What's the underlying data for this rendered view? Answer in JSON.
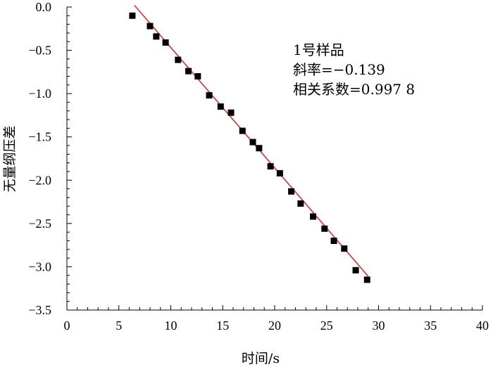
{
  "chart_data": {
    "type": "scatter",
    "xlabel": "时间/s",
    "ylabel": "无量纲压差",
    "xlim": [
      0,
      40
    ],
    "ylim": [
      -3.5,
      0.0
    ],
    "xticks": [
      "0",
      "5",
      "10",
      "15",
      "20",
      "25",
      "30",
      "35",
      "40"
    ],
    "yticks": [
      "0.0",
      "−0.5",
      "−1.0",
      "−1.5",
      "−2.0",
      "−2.5",
      "−3.0",
      "−3.5"
    ],
    "grid": false,
    "annotations": [
      "1号样品",
      "斜率=−0.139",
      "相关系数=0.997 8"
    ],
    "points": {
      "x": [
        6.3,
        8.0,
        8.6,
        9.5,
        10.7,
        11.7,
        12.6,
        13.7,
        14.8,
        15.8,
        16.9,
        17.9,
        18.5,
        19.6,
        20.5,
        21.6,
        22.5,
        23.7,
        24.8,
        25.7,
        26.7,
        27.8,
        28.9
      ],
      "y": [
        -0.1,
        -0.22,
        -0.34,
        -0.41,
        -0.61,
        -0.74,
        -0.8,
        -1.02,
        -1.15,
        -1.22,
        -1.43,
        -1.56,
        -1.63,
        -1.84,
        -1.92,
        -2.13,
        -2.27,
        -2.42,
        -2.56,
        -2.7,
        -2.79,
        -3.04,
        -3.15
      ],
      "color": "#000000",
      "marker": "square"
    },
    "fit_line": {
      "x": [
        6.5,
        29.0
      ],
      "y": [
        0.02,
        -3.11
      ],
      "color": "#e03030"
    }
  }
}
